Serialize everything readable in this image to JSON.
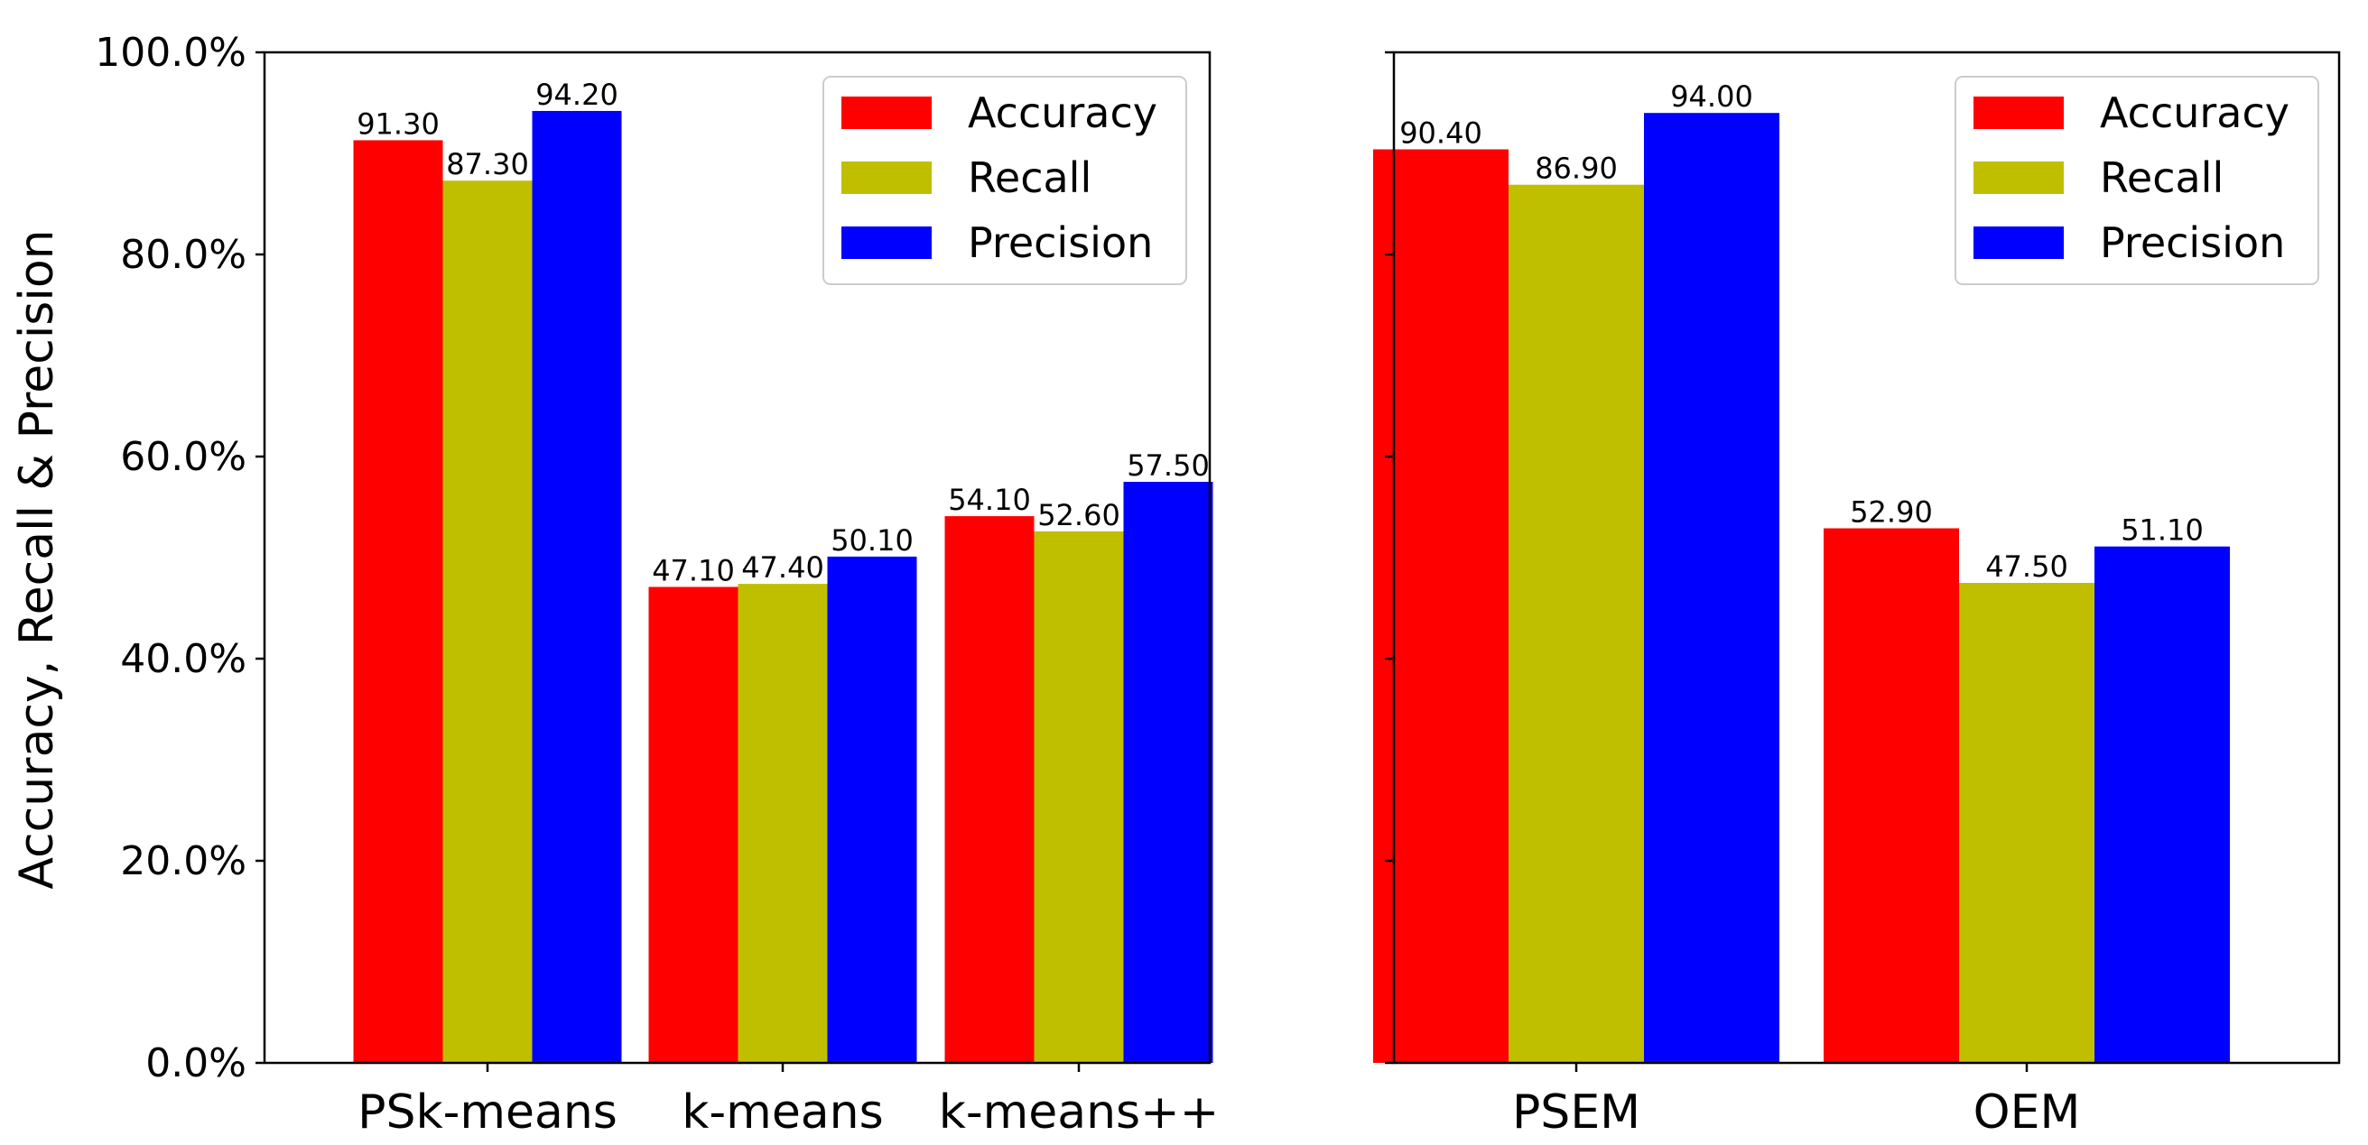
{
  "chart_data": [
    {
      "type": "bar",
      "ylabel": "Accuracy, Recall & Precision",
      "ylim": [
        0,
        100
      ],
      "yticks": [
        0,
        20,
        40,
        60,
        80,
        100
      ],
      "ytick_labels": [
        "0.0%",
        "20.0%",
        "40.0%",
        "60.0%",
        "80.0%",
        "100.0%"
      ],
      "legend_location": "top-right",
      "categories": [
        "PSk-means",
        "k-means",
        "k-means++"
      ],
      "series": [
        {
          "name": "Accuracy",
          "color": "#ff0000",
          "values": [
            91.3,
            47.1,
            54.1
          ],
          "labels": [
            "91.30",
            "47.10",
            "54.10"
          ]
        },
        {
          "name": "Recall",
          "color": "#bfbf00",
          "values": [
            87.3,
            47.4,
            52.6
          ],
          "labels": [
            "87.30",
            "47.40",
            "52.60"
          ]
        },
        {
          "name": "Precision",
          "color": "#0000ff",
          "values": [
            94.2,
            50.1,
            57.5
          ],
          "labels": [
            "94.20",
            "50.10",
            "57.50"
          ]
        }
      ]
    },
    {
      "type": "bar",
      "ylim": [
        0,
        100
      ],
      "yticks": [
        0,
        20,
        40,
        60,
        80,
        100
      ],
      "legend_location": "top-right",
      "categories": [
        "PSEM",
        "OEM"
      ],
      "series": [
        {
          "name": "Accuracy",
          "color": "#ff0000",
          "values": [
            90.4,
            52.9
          ],
          "labels": [
            "90.40",
            "52.90"
          ]
        },
        {
          "name": "Recall",
          "color": "#bfbf00",
          "values": [
            86.9,
            47.5
          ],
          "labels": [
            "86.90",
            "47.50"
          ]
        },
        {
          "name": "Precision",
          "color": "#0000ff",
          "values": [
            94.0,
            51.1
          ],
          "labels": [
            "94.00",
            "51.10"
          ]
        }
      ]
    }
  ]
}
